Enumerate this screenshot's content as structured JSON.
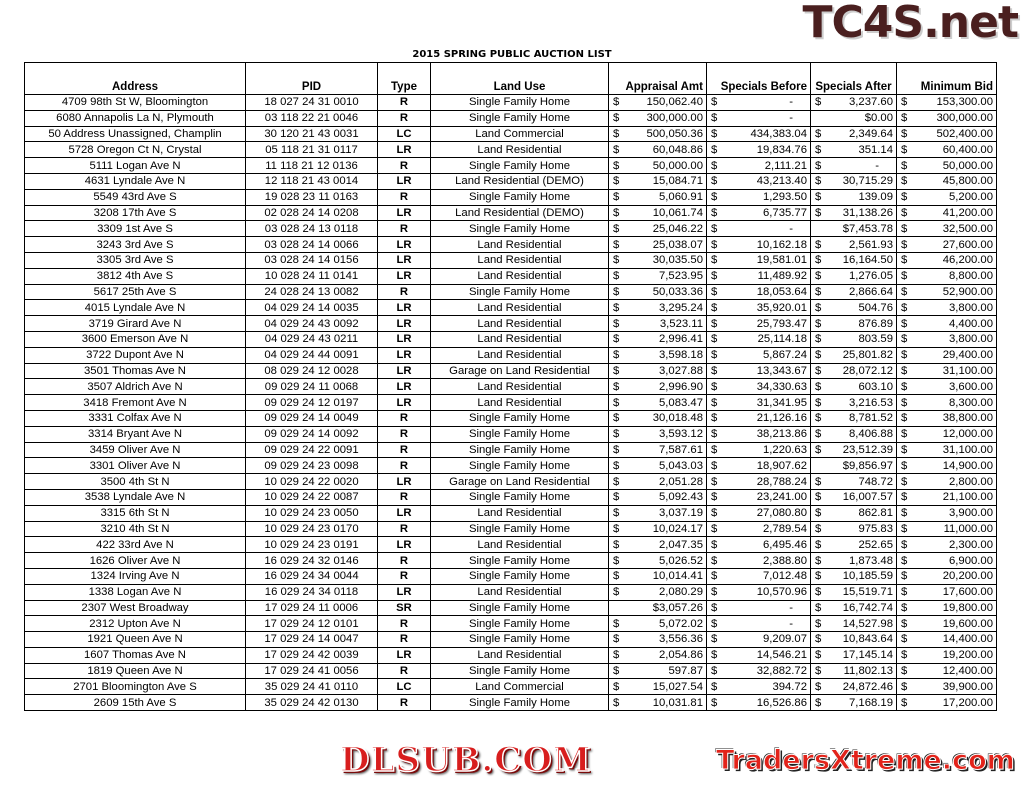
{
  "title": "2015 SPRING PUBLIC AUCTION LIST",
  "watermarks": {
    "top_right": "TC4S.net",
    "center": "DLSUB.COM",
    "bottom_right": "TradersXtreme.com"
  },
  "columns": [
    "Address",
    "PID",
    "Type",
    "Land Use",
    "Appraisal Amt",
    "Specials Before",
    "Specials After",
    "Minimum Bid"
  ],
  "rows": [
    [
      "4709 98th St W, Bloomington",
      "18 027 24 31 0010",
      "R",
      "Single Family Home",
      [
        "$",
        "150,062.40"
      ],
      [
        "$",
        "-"
      ],
      [
        "$",
        "3,237.60"
      ],
      [
        "$",
        "153,300.00"
      ]
    ],
    [
      "6080 Annapolis La N, Plymouth",
      "03 118 22 21 0046",
      "R",
      "Single Family Home",
      [
        "$",
        "300,000.00"
      ],
      [
        "$",
        "-"
      ],
      [
        "",
        "$0.00"
      ],
      [
        "$",
        "300,000.00"
      ]
    ],
    [
      "50 Address Unassigned, Champlin",
      "30 120 21 43 0031",
      "LC",
      "Land Commercial",
      [
        "$",
        "500,050.36"
      ],
      [
        "$",
        "434,383.04"
      ],
      [
        "$",
        "2,349.64"
      ],
      [
        "$",
        "502,400.00"
      ]
    ],
    [
      "5728 Oregon Ct N, Crystal",
      "05 118 21 31 0117",
      "LR",
      "Land Residential",
      [
        "$",
        "60,048.86"
      ],
      [
        "$",
        "19,834.76"
      ],
      [
        "$",
        "351.14"
      ],
      [
        "$",
        "60,400.00"
      ]
    ],
    [
      "5111 Logan Ave N",
      "11 118 21 12 0136",
      "R",
      "Single Family Home",
      [
        "$",
        "50,000.00"
      ],
      [
        "$",
        "2,111.21"
      ],
      [
        "$",
        "-"
      ],
      [
        "$",
        "50,000.00"
      ]
    ],
    [
      "4631 Lyndale Ave N",
      "12 118 21 43 0014",
      "LR",
      "Land Residential (DEMO)",
      [
        "$",
        "15,084.71"
      ],
      [
        "$",
        "43,213.40"
      ],
      [
        "$",
        "30,715.29"
      ],
      [
        "$",
        "45,800.00"
      ]
    ],
    [
      "5549 43rd Ave S",
      "19 028 23 11 0163",
      "R",
      "Single Family Home",
      [
        "$",
        "5,060.91"
      ],
      [
        "$",
        "1,293.50"
      ],
      [
        "$",
        "139.09"
      ],
      [
        "$",
        "5,200.00"
      ]
    ],
    [
      "3208 17th Ave S",
      "02 028 24 14 0208",
      "LR",
      "Land Residential (DEMO)",
      [
        "$",
        "10,061.74"
      ],
      [
        "$",
        "6,735.77"
      ],
      [
        "$",
        "31,138.26"
      ],
      [
        "$",
        "41,200.00"
      ]
    ],
    [
      "3309 1st Ave S",
      "03 028 24 13 0118",
      "R",
      "Single Family Home",
      [
        "$",
        "25,046.22"
      ],
      [
        "$",
        "-"
      ],
      [
        "",
        "$7,453.78"
      ],
      [
        "$",
        "32,500.00"
      ]
    ],
    [
      "3243 3rd Ave S",
      "03 028 24 14 0066",
      "LR",
      "Land Residential",
      [
        "$",
        "25,038.07"
      ],
      [
        "$",
        "10,162.18"
      ],
      [
        "$",
        "2,561.93"
      ],
      [
        "$",
        "27,600.00"
      ]
    ],
    [
      "3305 3rd Ave S",
      "03 028 24 14 0156",
      "LR",
      "Land Residential",
      [
        "$",
        "30,035.50"
      ],
      [
        "$",
        "19,581.01"
      ],
      [
        "$",
        "16,164.50"
      ],
      [
        "$",
        "46,200.00"
      ]
    ],
    [
      "3812 4th Ave S",
      "10 028 24 11 0141",
      "LR",
      "Land Residential",
      [
        "$",
        "7,523.95"
      ],
      [
        "$",
        "11,489.92"
      ],
      [
        "$",
        "1,276.05"
      ],
      [
        "$",
        "8,800.00"
      ]
    ],
    [
      "5617 25th Ave S",
      "24 028 24 13 0082",
      "R",
      "Single Family Home",
      [
        "$",
        "50,033.36"
      ],
      [
        "$",
        "18,053.64"
      ],
      [
        "$",
        "2,866.64"
      ],
      [
        "$",
        "52,900.00"
      ]
    ],
    [
      "4015 Lyndale Ave N",
      "04 029 24 14 0035",
      "LR",
      "Land Residential",
      [
        "$",
        "3,295.24"
      ],
      [
        "$",
        "35,920.01"
      ],
      [
        "$",
        "504.76"
      ],
      [
        "$",
        "3,800.00"
      ]
    ],
    [
      "3719 Girard Ave N",
      "04 029 24 43 0092",
      "LR",
      "Land Residential",
      [
        "$",
        "3,523.11"
      ],
      [
        "$",
        "25,793.47"
      ],
      [
        "$",
        "876.89"
      ],
      [
        "$",
        "4,400.00"
      ]
    ],
    [
      "3600 Emerson Ave N",
      "04 029 24 43 0211",
      "LR",
      "Land Residential",
      [
        "$",
        "2,996.41"
      ],
      [
        "$",
        "25,114.18"
      ],
      [
        "$",
        "803.59"
      ],
      [
        "$",
        "3,800.00"
      ]
    ],
    [
      "3722 Dupont Ave N",
      "04 029 24 44 0091",
      "LR",
      "Land Residential",
      [
        "$",
        "3,598.18"
      ],
      [
        "$",
        "5,867.24"
      ],
      [
        "$",
        "25,801.82"
      ],
      [
        "$",
        "29,400.00"
      ]
    ],
    [
      "3501 Thomas Ave N",
      "08 029 24 12 0028",
      "LR",
      "Garage on Land Residential",
      [
        "$",
        "3,027.88"
      ],
      [
        "$",
        "13,343.67"
      ],
      [
        "$",
        "28,072.12"
      ],
      [
        "$",
        "31,100.00"
      ]
    ],
    [
      "3507 Aldrich Ave N",
      "09 029 24 11 0068",
      "LR",
      "Land Residential",
      [
        "$",
        "2,996.90"
      ],
      [
        "$",
        "34,330.63"
      ],
      [
        "$",
        "603.10"
      ],
      [
        "$",
        "3,600.00"
      ]
    ],
    [
      "3418 Fremont Ave N",
      "09 029 24 12 0197",
      "LR",
      "Land Residential",
      [
        "$",
        "5,083.47"
      ],
      [
        "$",
        "31,341.95"
      ],
      [
        "$",
        "3,216.53"
      ],
      [
        "$",
        "8,300.00"
      ]
    ],
    [
      "3331 Colfax Ave N",
      "09 029 24 14 0049",
      "R",
      "Single Family Home",
      [
        "$",
        "30,018.48"
      ],
      [
        "$",
        "21,126.16"
      ],
      [
        "$",
        "8,781.52"
      ],
      [
        "$",
        "38,800.00"
      ]
    ],
    [
      "3314 Bryant Ave N",
      "09 029 24 14 0092",
      "R",
      "Single Family Home",
      [
        "$",
        "3,593.12"
      ],
      [
        "$",
        "38,213.86"
      ],
      [
        "$",
        "8,406.88"
      ],
      [
        "$",
        "12,000.00"
      ]
    ],
    [
      "3459 Oliver Ave N",
      "09 029 24 22 0091",
      "R",
      "Single Family Home",
      [
        "$",
        "7,587.61"
      ],
      [
        "$",
        "1,220.63"
      ],
      [
        "$",
        "23,512.39"
      ],
      [
        "$",
        "31,100.00"
      ]
    ],
    [
      "3301 Oliver Ave N",
      "09 029 24 23 0098",
      "R",
      "Single Family Home",
      [
        "$",
        "5,043.03"
      ],
      [
        "$",
        "18,907.62"
      ],
      [
        "",
        "$9,856.97"
      ],
      [
        "$",
        "14,900.00"
      ]
    ],
    [
      "3500 4th St N",
      "10 029 24 22 0020",
      "LR",
      "Garage on Land Residential",
      [
        "$",
        "2,051.28"
      ],
      [
        "$",
        "28,788.24"
      ],
      [
        "$",
        "748.72"
      ],
      [
        "$",
        "2,800.00"
      ]
    ],
    [
      "3538 Lyndale Ave N",
      "10 029 24 22 0087",
      "R",
      "Single Family Home",
      [
        "$",
        "5,092.43"
      ],
      [
        "$",
        "23,241.00"
      ],
      [
        "$",
        "16,007.57"
      ],
      [
        "$",
        "21,100.00"
      ]
    ],
    [
      "3315 6th St N",
      "10 029 24 23 0050",
      "LR",
      "Land Residential",
      [
        "$",
        "3,037.19"
      ],
      [
        "$",
        "27,080.80"
      ],
      [
        "$",
        "862.81"
      ],
      [
        "$",
        "3,900.00"
      ]
    ],
    [
      "3210 4th St N",
      "10 029 24 23 0170",
      "R",
      "Single Family Home",
      [
        "$",
        "10,024.17"
      ],
      [
        "$",
        "2,789.54"
      ],
      [
        "$",
        "975.83"
      ],
      [
        "$",
        "11,000.00"
      ]
    ],
    [
      "422 33rd Ave N",
      "10 029 24 23 0191",
      "LR",
      "Land Residential",
      [
        "$",
        "2,047.35"
      ],
      [
        "$",
        "6,495.46"
      ],
      [
        "$",
        "252.65"
      ],
      [
        "$",
        "2,300.00"
      ]
    ],
    [
      "1626 Oliver Ave N",
      "16 029 24 32 0146",
      "R",
      "Single Family Home",
      [
        "$",
        "5,026.52"
      ],
      [
        "$",
        "2,388.80"
      ],
      [
        "$",
        "1,873.48"
      ],
      [
        "$",
        "6,900.00"
      ]
    ],
    [
      "1324 Irving Ave N",
      "16 029 24 34 0044",
      "R",
      "Single Family Home",
      [
        "$",
        "10,014.41"
      ],
      [
        "$",
        "7,012.48"
      ],
      [
        "$",
        "10,185.59"
      ],
      [
        "$",
        "20,200.00"
      ]
    ],
    [
      "1338 Logan Ave N",
      "16 029 24 34 0118",
      "LR",
      "Land Residential",
      [
        "$",
        "2,080.29"
      ],
      [
        "$",
        "10,570.96"
      ],
      [
        "$",
        "15,519.71"
      ],
      [
        "$",
        "17,600.00"
      ]
    ],
    [
      "2307 West Broadway",
      "17 029 24 11 0006",
      "SR",
      "Single Family Home",
      [
        "",
        "$3,057.26"
      ],
      [
        "$",
        "-"
      ],
      [
        "$",
        "16,742.74"
      ],
      [
        "$",
        "19,800.00"
      ]
    ],
    [
      "2312 Upton Ave N",
      "17 029 24 12 0101",
      "R",
      "Single Family Home",
      [
        "$",
        "5,072.02"
      ],
      [
        "$",
        "-"
      ],
      [
        "$",
        "14,527.98"
      ],
      [
        "$",
        "19,600.00"
      ]
    ],
    [
      "1921 Queen Ave N",
      "17 029 24 14 0047",
      "R",
      "Single Family Home",
      [
        "$",
        "3,556.36"
      ],
      [
        "$",
        "9,209.07"
      ],
      [
        "$",
        "10,843.64"
      ],
      [
        "$",
        "14,400.00"
      ]
    ],
    [
      "1607 Thomas Ave N",
      "17 029 24 42 0039",
      "LR",
      "Land Residential",
      [
        "$",
        "2,054.86"
      ],
      [
        "$",
        "14,546.21"
      ],
      [
        "$",
        "17,145.14"
      ],
      [
        "$",
        "19,200.00"
      ]
    ],
    [
      "1819 Queen Ave N",
      "17 029 24 41 0056",
      "R",
      "Single Family Home",
      [
        "$",
        "597.87"
      ],
      [
        "$",
        "32,882.72"
      ],
      [
        "$",
        "11,802.13"
      ],
      [
        "$",
        "12,400.00"
      ]
    ],
    [
      "2701 Bloomington Ave S",
      "35 029 24 41 0110",
      "LC",
      "Land Commercial",
      [
        "$",
        "15,027.54"
      ],
      [
        "$",
        "394.72"
      ],
      [
        "$",
        "24,872.46"
      ],
      [
        "$",
        "39,900.00"
      ]
    ],
    [
      "2609 15th Ave S",
      "35 029 24 42 0130",
      "R",
      "Single Family Home",
      [
        "$",
        "10,031.81"
      ],
      [
        "$",
        "16,526.86"
      ],
      [
        "$",
        "7,168.19"
      ],
      [
        "$",
        "17,200.00"
      ]
    ]
  ]
}
